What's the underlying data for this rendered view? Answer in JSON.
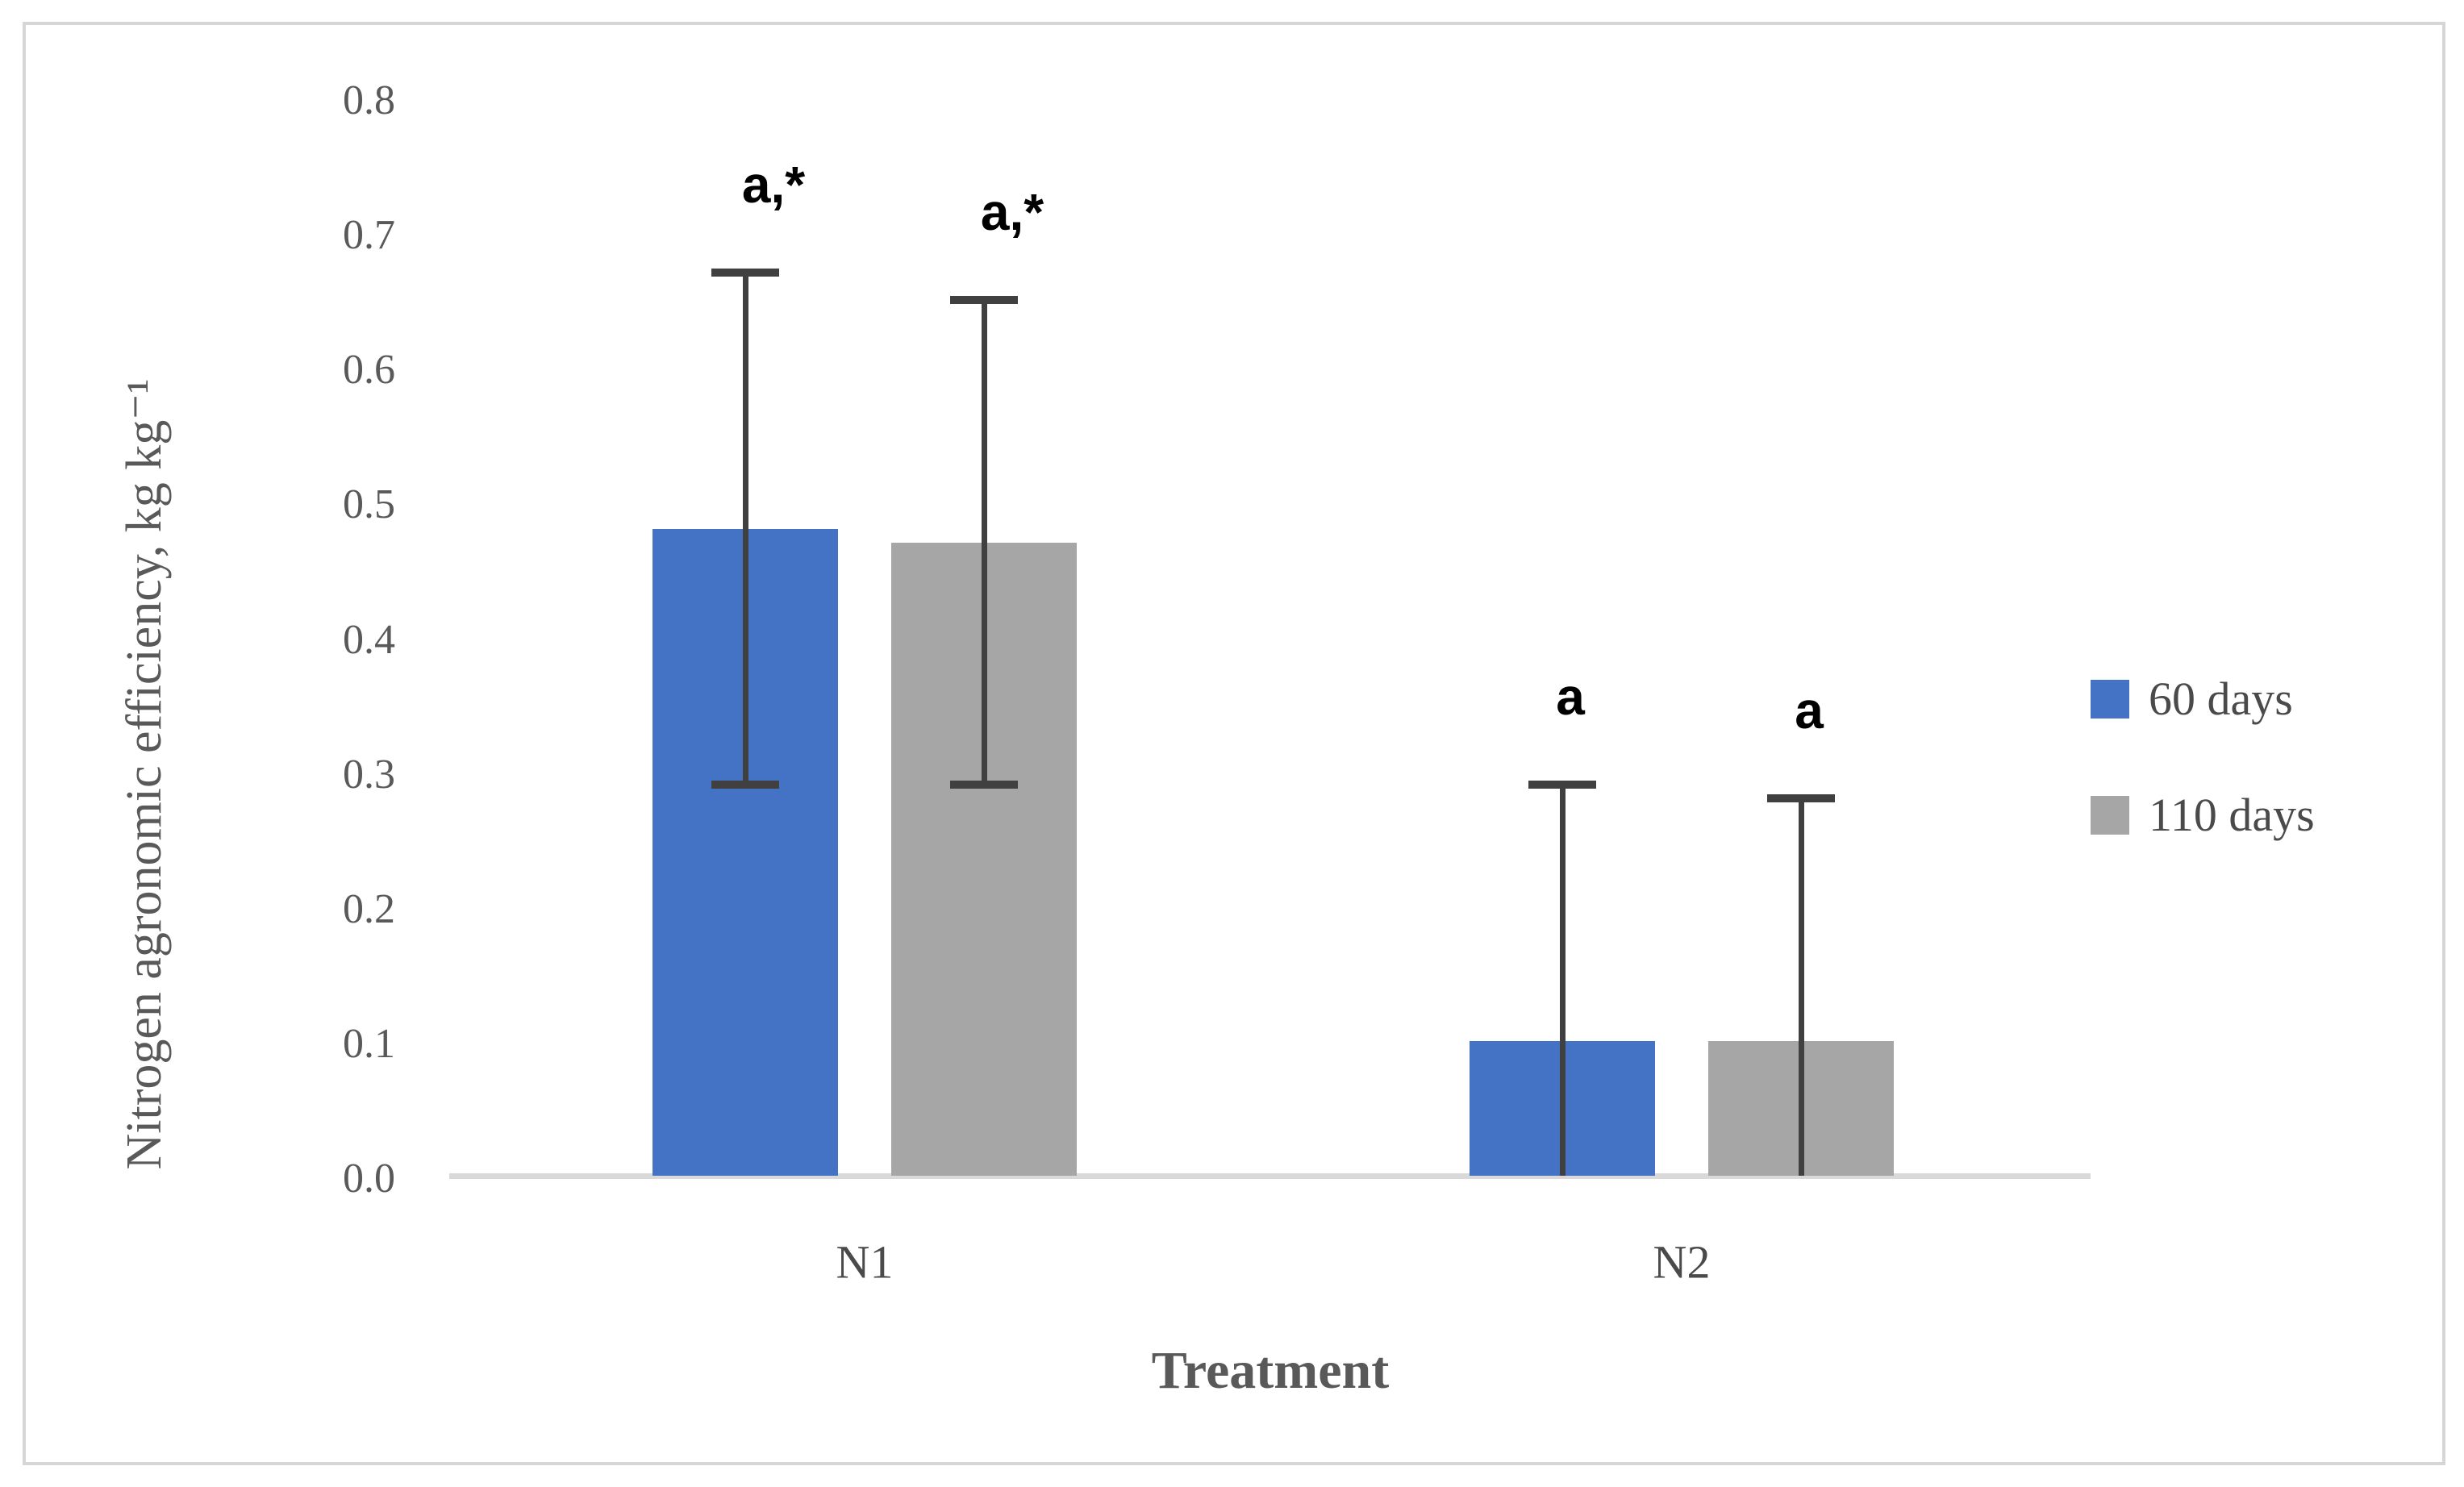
{
  "chart_data": {
    "type": "bar",
    "title": "",
    "xlabel": "Treatment",
    "ylabel": "Nitrogen agronomic efficiency, kg kg⁻¹",
    "ylim": [
      0.0,
      0.8
    ],
    "ytick_step": 0.1,
    "ytick_labels": [
      "0.8",
      "0.7",
      "0.6",
      "0.5",
      "0.4",
      "0.3",
      "0.2",
      "0.1",
      "0.0"
    ],
    "categories": [
      "N1",
      "N2"
    ],
    "series": [
      {
        "name": "60 days",
        "color": "#4472C4",
        "values": [
          0.48,
          0.1
        ],
        "whisker_top": [
          0.67,
          0.29
        ],
        "whisker_bottom": [
          0.29,
          0.0
        ],
        "bottom_cap": [
          true,
          false
        ],
        "point_labels": [
          "a,*",
          "a"
        ]
      },
      {
        "name": "110 days",
        "color": "#A6A6A6",
        "values": [
          0.47,
          0.1
        ],
        "whisker_top": [
          0.65,
          0.28
        ],
        "whisker_bottom": [
          0.29,
          0.0
        ],
        "bottom_cap": [
          true,
          false
        ],
        "point_labels": [
          "a,*",
          "a"
        ]
      }
    ],
    "legend_position": "right",
    "grid": false,
    "error_bar_color": "#404040",
    "axis_line_color": "#D9D9D9",
    "tick_text_color": "#595959"
  }
}
